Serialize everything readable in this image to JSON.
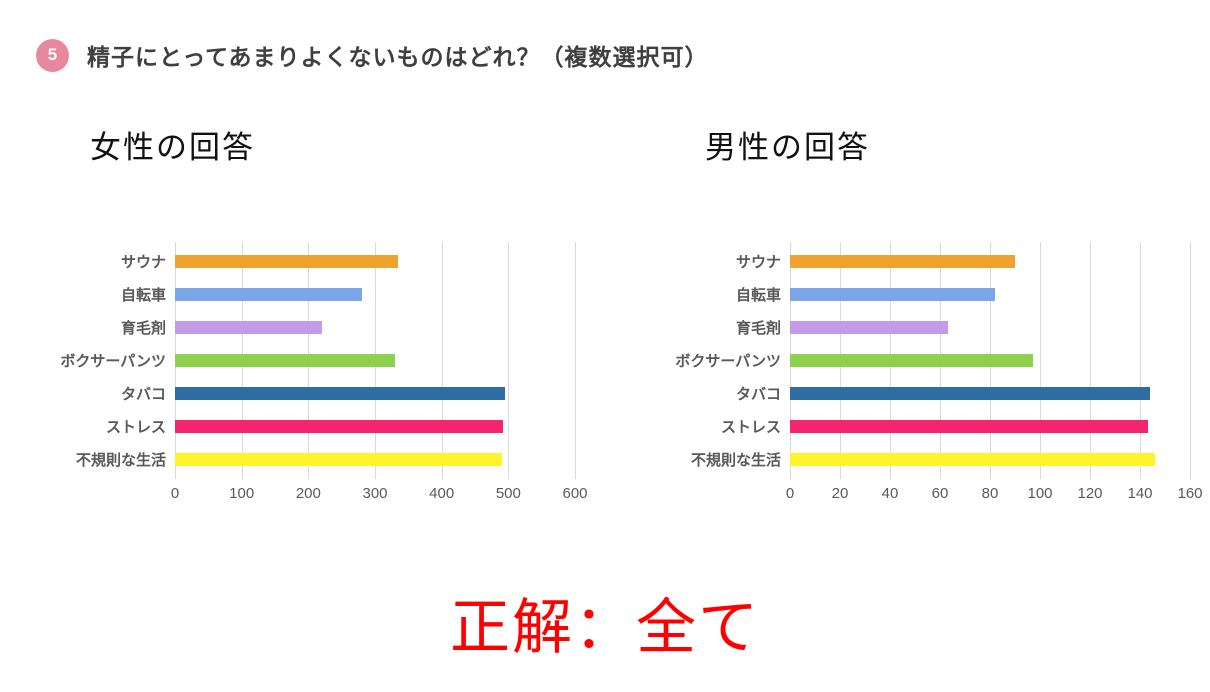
{
  "header": {
    "number": "5",
    "title": "精子にとってあまりよくないものはどれ？（複数選択可）"
  },
  "answer": {
    "text": "正解：全て",
    "color": "#ff0000"
  },
  "colors": {
    "badge_pink": "#e8889e",
    "title_gray": "#3f3f3f",
    "axis_gray": "#595959",
    "gridline_gray": "#d9d9d9"
  },
  "chart_data": [
    {
      "type": "bar",
      "orientation": "horizontal",
      "title": "女性の回答",
      "categories": [
        "サウナ",
        "自転車",
        "育毛剤",
        "ボクサーパンツ",
        "タバコ",
        "ストレス",
        "不規則な生活"
      ],
      "values": [
        335,
        280,
        220,
        330,
        495,
        492,
        490
      ],
      "colors": [
        "#f0a22e",
        "#7aa5e9",
        "#c49be6",
        "#8ed14f",
        "#2e6da4",
        "#f3256e",
        "#fdf42b"
      ],
      "xlim": [
        0,
        600
      ],
      "xticks": [
        0,
        100,
        200,
        300,
        400,
        500,
        600
      ],
      "xlabel": "",
      "ylabel": "",
      "grid": true,
      "legend": false
    },
    {
      "type": "bar",
      "orientation": "horizontal",
      "title": "男性の回答",
      "categories": [
        "サウナ",
        "自転車",
        "育毛剤",
        "ボクサーパンツ",
        "タバコ",
        "ストレス",
        "不規則な生活"
      ],
      "values": [
        90,
        82,
        63,
        97,
        144,
        143,
        146
      ],
      "colors": [
        "#f0a22e",
        "#7aa5e9",
        "#c49be6",
        "#8ed14f",
        "#2e6da4",
        "#f3256e",
        "#fdf42b"
      ],
      "xlim": [
        0,
        160
      ],
      "xticks": [
        0,
        20,
        40,
        60,
        80,
        100,
        120,
        140,
        160
      ],
      "xlabel": "",
      "ylabel": "",
      "grid": true,
      "legend": false
    }
  ]
}
